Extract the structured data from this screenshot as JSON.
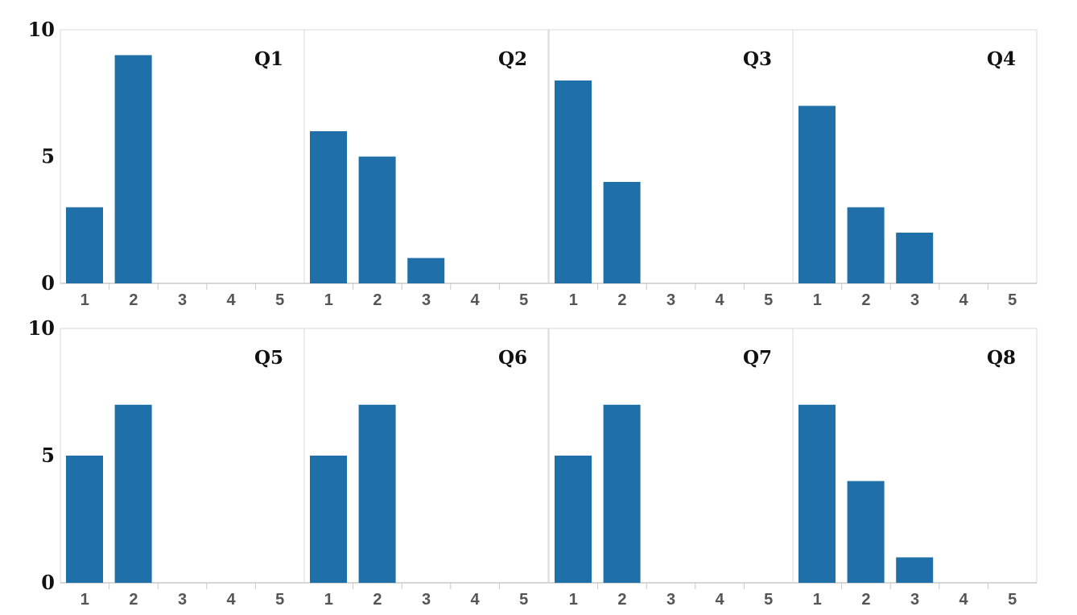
{
  "chart_data": {
    "type": "bar",
    "layout": "small-multiples 2x4",
    "categories": [
      "1",
      "2",
      "3",
      "4",
      "5"
    ],
    "yticks": [
      "0",
      "5",
      "10"
    ],
    "ylim": [
      0,
      10
    ],
    "grid": false,
    "bar_color": "#1f6fa8",
    "border_color": "#d9d9d9",
    "panels": [
      {
        "title": "Q1",
        "values": [
          3,
          9,
          0,
          0,
          0
        ]
      },
      {
        "title": "Q2",
        "values": [
          6,
          5,
          1,
          0,
          0
        ]
      },
      {
        "title": "Q3",
        "values": [
          8,
          4,
          0,
          0,
          0
        ]
      },
      {
        "title": "Q4",
        "values": [
          7,
          3,
          2,
          0,
          0
        ]
      },
      {
        "title": "Q5",
        "values": [
          5,
          7,
          0,
          0,
          0
        ]
      },
      {
        "title": "Q6",
        "values": [
          5,
          7,
          0,
          0,
          0
        ]
      },
      {
        "title": "Q7",
        "values": [
          5,
          7,
          0,
          0,
          0
        ]
      },
      {
        "title": "Q8",
        "values": [
          7,
          4,
          1,
          0,
          0
        ]
      }
    ]
  }
}
